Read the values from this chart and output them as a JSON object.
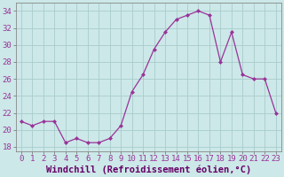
{
  "x": [
    0,
    1,
    2,
    3,
    4,
    5,
    6,
    7,
    8,
    9,
    10,
    11,
    12,
    13,
    14,
    15,
    16,
    17,
    18,
    19,
    20,
    21,
    22,
    23
  ],
  "y": [
    21,
    20.5,
    21,
    21,
    18.5,
    19,
    18.5,
    18.5,
    19,
    20.5,
    24.5,
    26.5,
    29.5,
    31.5,
    33,
    33.5,
    34,
    33.5,
    28,
    31.5,
    26.5,
    26,
    26,
    22
  ],
  "line_color": "#993399",
  "marker": "D",
  "marker_size": 2,
  "bg_color": "#cce8e8",
  "grid_color": "#aacccc",
  "xlabel": "Windchill (Refroidissement éolien,°C)",
  "xlabel_fontsize": 7.5,
  "tick_fontsize": 6.5,
  "ylim": [
    17.5,
    35
  ],
  "yticks": [
    18,
    20,
    22,
    24,
    26,
    28,
    30,
    32,
    34
  ],
  "xticks": [
    0,
    1,
    2,
    3,
    4,
    5,
    6,
    7,
    8,
    9,
    10,
    11,
    12,
    13,
    14,
    15,
    16,
    17,
    18,
    19,
    20,
    21,
    22,
    23
  ]
}
